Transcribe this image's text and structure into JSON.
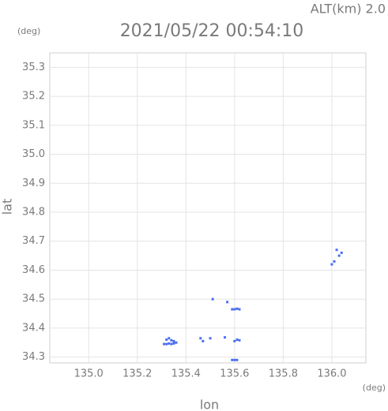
{
  "chart_data": {
    "type": "scatter",
    "title": "2021/05/22 00:54:10",
    "annotation": "ALT(km) 2.0",
    "y_unit": "(deg)",
    "x_unit": "(deg)",
    "xlabel": "lon",
    "ylabel": "lat",
    "color": "#4a6ef0",
    "x": [
      135.31,
      135.32,
      135.33,
      135.34,
      135.35,
      135.36,
      135.32,
      135.33,
      135.34,
      135.35,
      135.46,
      135.47,
      135.5,
      135.56,
      135.51,
      135.57,
      135.59,
      135.6,
      135.61,
      135.62,
      135.6,
      135.61,
      135.62,
      135.59,
      135.6,
      135.61,
      136.0,
      136.01,
      136.03,
      136.04,
      136.02
    ],
    "y": [
      34.345,
      34.345,
      34.347,
      34.345,
      34.347,
      34.35,
      34.36,
      34.365,
      34.358,
      34.355,
      34.365,
      34.355,
      34.365,
      34.368,
      34.5,
      34.49,
      34.465,
      34.465,
      34.467,
      34.465,
      34.355,
      34.36,
      34.358,
      34.29,
      34.29,
      34.29,
      34.62,
      34.63,
      34.65,
      34.66,
      34.67
    ],
    "xlim": [
      134.84,
      136.14
    ],
    "ylim": [
      34.28,
      35.35
    ],
    "xticks": [
      {
        "value": 135,
        "label": "135.0"
      },
      135.2,
      135.4,
      135.6,
      135.8,
      {
        "value": 136,
        "label": "136.0"
      }
    ],
    "yticks": [
      34.3,
      34.4,
      34.5,
      34.6,
      34.7,
      34.8,
      34.9,
      {
        "value": 35,
        "label": "35.0"
      },
      35.1,
      35.2,
      35.3
    ],
    "grid": true
  }
}
